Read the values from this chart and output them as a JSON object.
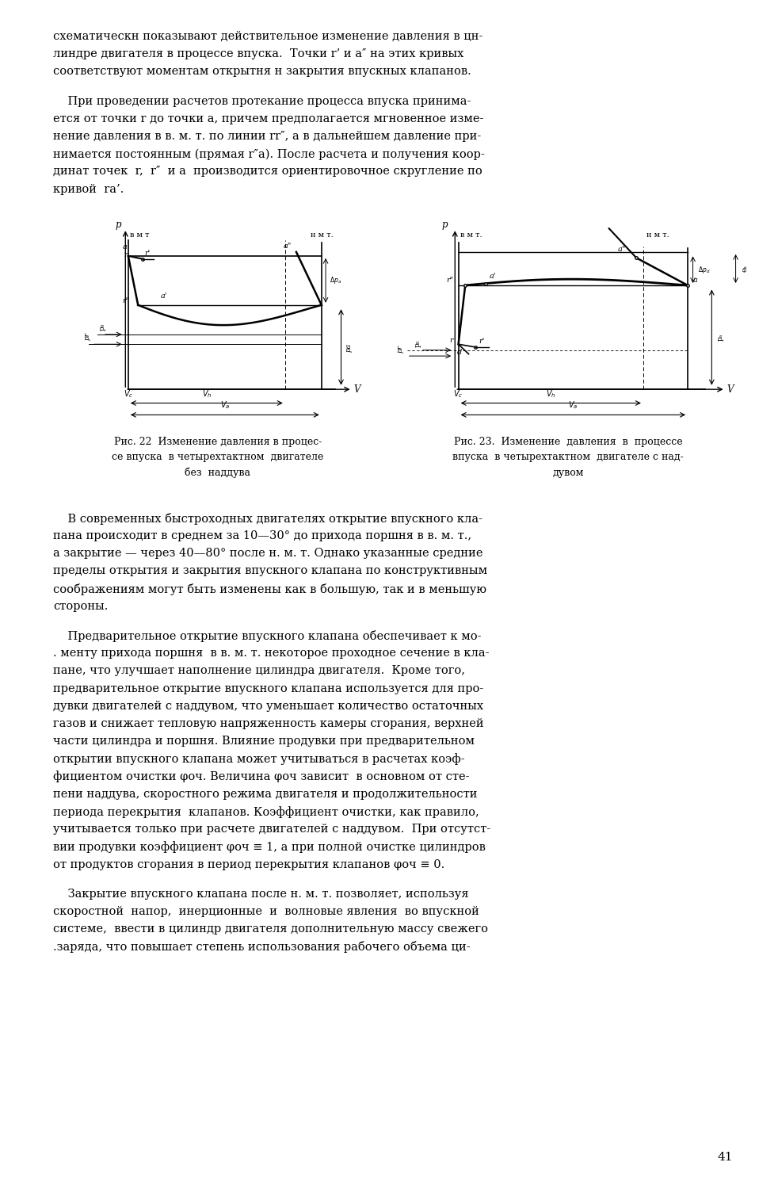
{
  "page_width": 9.82,
  "page_height": 15.0,
  "bg_color": "#ffffff",
  "text_color": "#000000",
  "para1_lines": [
    "схематическн показывают действительное изменение давления в цн-",
    "линдре двигателя в процессе впуска.  Точки r’ и a″ на этих кривых",
    "соответствуют моментам открытня н закрытия впускных клапанов."
  ],
  "para2_lines": [
    "    При проведении расчетов протекание процесса впуска принима-",
    "ется от точки r до точки a, причем предполагается мгновенное изме-",
    "нение давления в в. м. т. по линии rr″, а в дальнейшем давление при-",
    "нимается постоянным (прямая r″a). После расчета и получения коор-",
    "динат точек  r,  r″  и a  производится ориентировочное скругление по",
    "кривой  ra’."
  ],
  "caption1": [
    "Рис. 22  Изменение давления в процес-",
    "се впуска  в четырехтактном  двигателе",
    "без  наддува"
  ],
  "caption2": [
    "Рис. 23.  Изменение  давления  в  процессе",
    "впуска  в четырехтактном  двигателе с над-",
    "дувом"
  ],
  "para3_lines": [
    "    В современных быстроходных двигателях открытие впускного кла-",
    "пана происходит в среднем за 10—30° до прихода поршня в в. м. т.,",
    "а закрытие — через 40—80° после н. м. т. Однако указанные средние",
    "пределы открытия и закрытия впускного клапана по конструктивным",
    "соображениям могут быть изменены как в большую, так и в меньшую",
    "стороны."
  ],
  "para4_lines": [
    "    Предварительное открытие впускного клапана обеспечивает к мо-",
    ". менту прихода поршня  в в. м. т. некоторое проходное сечение в кла-",
    "пане, что улучшает наполнение цилиндра двигателя.  Кроме того,",
    "предварительное открытие впускного клапана используется для про-",
    "дувки двигателей с наддувом, что уменьшает количество остаточных",
    "газов и снижает тепловую напряженность камеры сгорания, верхней",
    "части цилиндра и поршня. Влияние продувки при предварительном",
    "открытии впускного клапана может учитываться в расчетах коэф-",
    "фициентом очистки φоч. Величина φоч зависит  в основном от сте-",
    "пени наддува, скоростного режима двигателя и продолжительности",
    "периода перекрытия  клапанов. Коэффициент очистки, как правило,",
    "учитывается только при расчете двигателей с наддувом.  При отсутст-",
    "вии продувки коэффициент φоч ≡ 1, а при полной очистке цилиндров",
    "от продуктов сгорания в период перекрытия клапанов φоч ≡ 0."
  ],
  "para5_lines": [
    "    Закрытие впускного клапана после н. м. т. позволяет, используя",
    "скоростной  напор,  инерционные  и  волновые явления  во впускной",
    "системе,  ввести в цилиндр двигателя дополнительную массу свежего",
    ".заряда, что повышает степень использования рабочего объема ци-"
  ],
  "page_number": "41"
}
